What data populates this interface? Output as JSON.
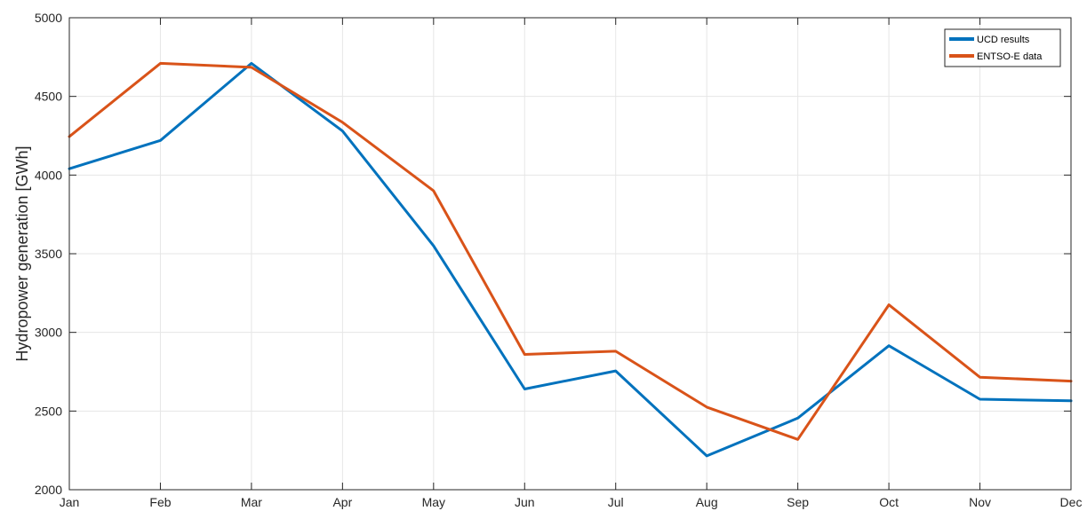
{
  "chart_data": {
    "type": "line",
    "categories": [
      "Jan",
      "Feb",
      "Mar",
      "Apr",
      "May",
      "Jun",
      "Jul",
      "Aug",
      "Sep",
      "Oct",
      "Nov",
      "Dec"
    ],
    "series": [
      {
        "name": "UCD results",
        "color": "#0072BD",
        "values": [
          4040,
          4220,
          4710,
          4280,
          3550,
          2640,
          2755,
          2215,
          2455,
          2915,
          2575,
          2565
        ]
      },
      {
        "name": "ENTSO-E data",
        "color": "#D95319",
        "values": [
          4245,
          4710,
          4685,
          4335,
          3900,
          2860,
          2880,
          2525,
          2320,
          3175,
          2715,
          2690
        ]
      }
    ],
    "ylabel": "Hydropower generation [GWh]",
    "xlabel": "",
    "ylim": [
      2000,
      5000
    ],
    "yticks": [
      2000,
      2500,
      3000,
      3500,
      4000,
      4500,
      5000
    ],
    "grid": true,
    "legend": "top-right"
  }
}
